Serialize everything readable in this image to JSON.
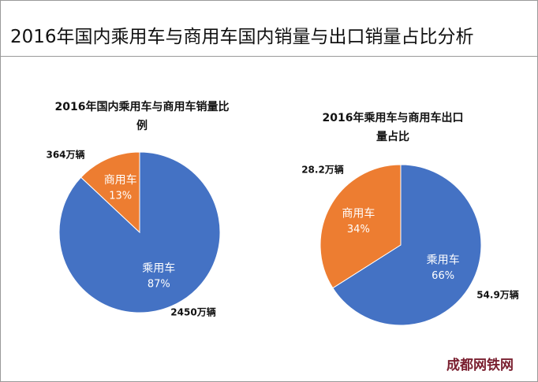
{
  "header": {
    "title": "2016年国内乘用车与商用车国内销量与出口销量占比分析"
  },
  "watermark": "成都网铁网",
  "chart_data": [
    {
      "type": "pie",
      "title": "2016年国内乘用车与商用车销量比例",
      "categories": [
        "乘用车",
        "商用车"
      ],
      "values": [
        87,
        13
      ],
      "value_labels": [
        "87%",
        "13%"
      ],
      "colors": [
        "#4472c4",
        "#ed7d31"
      ],
      "annotations": [
        "2450万辆",
        "364万辆"
      ]
    },
    {
      "type": "pie",
      "title": "2016年乘用车与商用车出口量占比",
      "categories": [
        "乘用车",
        "商用车"
      ],
      "values": [
        66,
        34
      ],
      "value_labels": [
        "66%",
        "34%"
      ],
      "colors": [
        "#4472c4",
        "#ed7d31"
      ],
      "annotations": [
        "54.9万辆",
        "28.2万辆"
      ]
    }
  ]
}
